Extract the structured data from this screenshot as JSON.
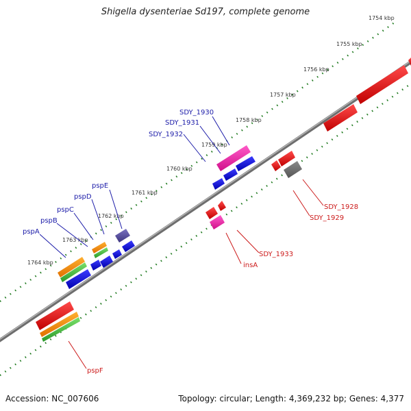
{
  "title": "Shigella dysenteriae Sd197, complete genome",
  "footer": {
    "accession": "Accession: NC_007606",
    "summary": "Topology: circular; Length: 4,369,232 bp; Genes: 4,377"
  },
  "colors": {
    "backbone": "#8a8a8a",
    "ticks": "#1f7a1f",
    "forward_label": "#1a1aa8",
    "reverse_label": "#cc1a1a"
  },
  "kbp_labels": [
    "1754 kbp",
    "1755 kbp",
    "1756 kbp",
    "1757 kbp",
    "1758 kbp",
    "1759 kbp",
    "1760 kbp",
    "1761 kbp",
    "1762 kbp",
    "1763 kbp",
    "1764 kbp"
  ],
  "labels": {
    "forward": [
      "SDY_1930",
      "SDY_1931",
      "SDY_1932",
      "pspE",
      "pspD",
      "pspC",
      "pspB",
      "pspA"
    ],
    "reverse": [
      "SDY_1928",
      "SDY_1929",
      "SDY_1933",
      "insA",
      "pspF"
    ]
  }
}
